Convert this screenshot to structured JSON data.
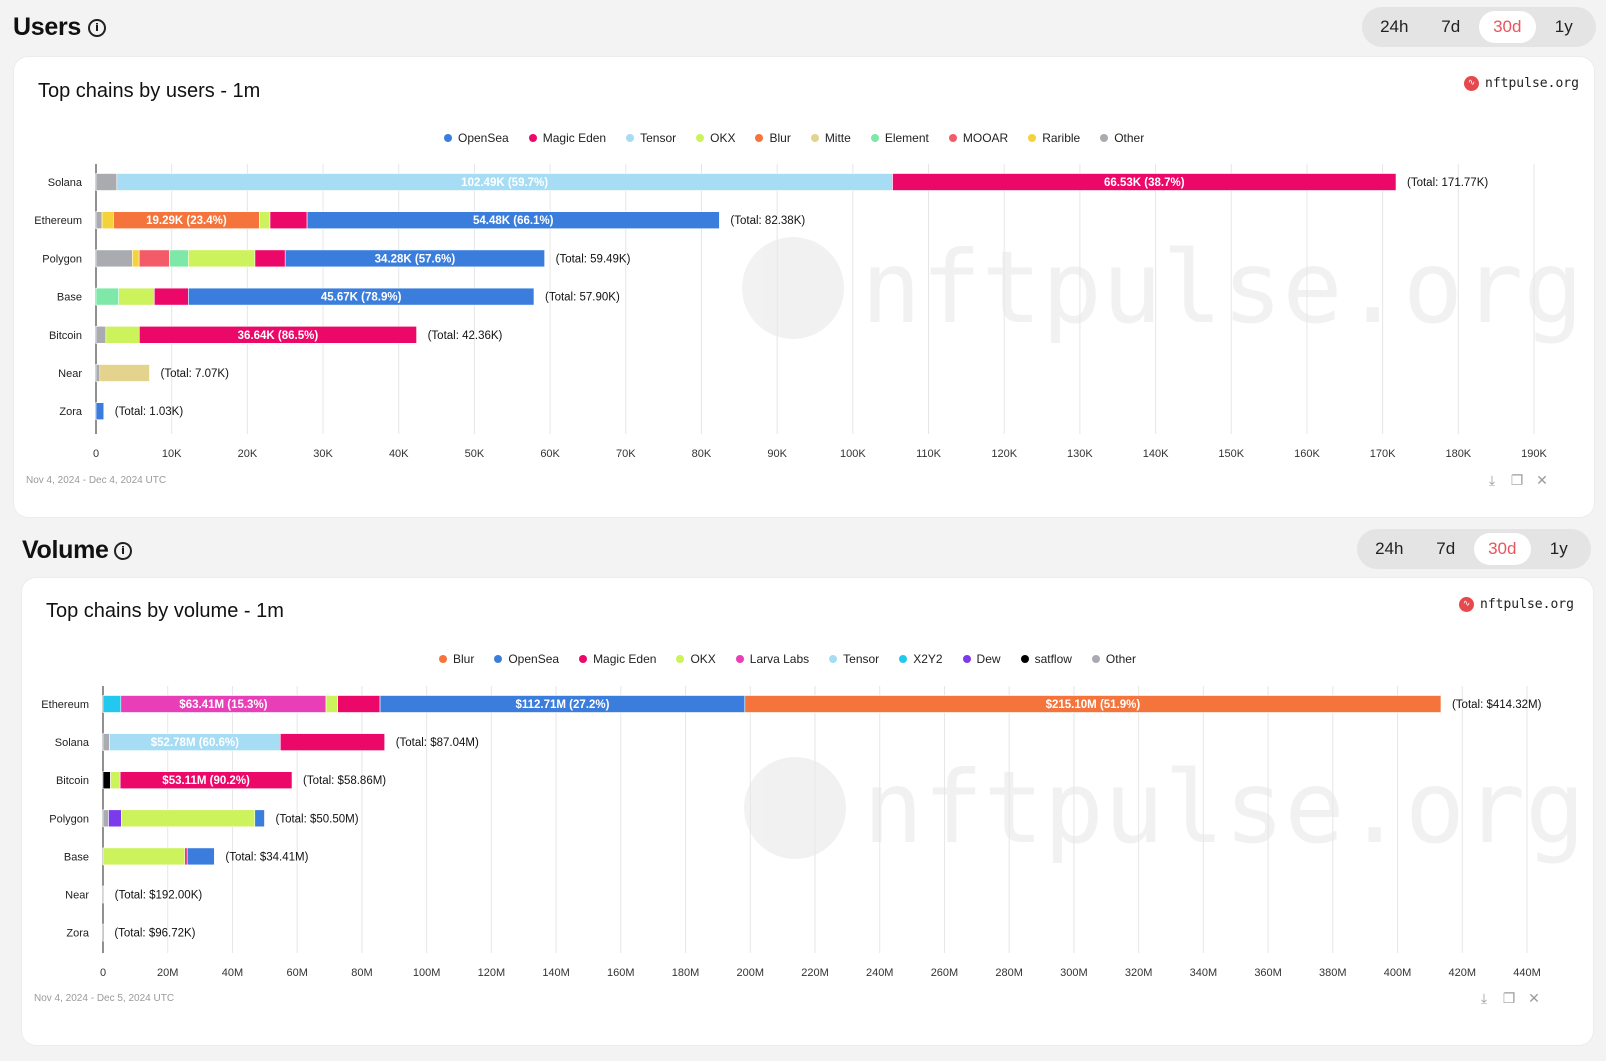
{
  "users": {
    "section_title": "Users",
    "tabs": [
      "24h",
      "7d",
      "30d",
      "1y"
    ],
    "active_tab": "30d",
    "card_title": "Top chains by users - 1m",
    "brand": "nftpulse.org",
    "watermark": "nftpulse.org",
    "date_range": "Nov 4, 2024 - Dec 4, 2024 UTC",
    "chart_data": {
      "type": "bar",
      "orientation": "horizontal",
      "stacked": true,
      "xlim": [
        0,
        190000
      ],
      "x_tick_step": 10000,
      "x_tick_labels": [
        "0",
        "10K",
        "20K",
        "30K",
        "40K",
        "50K",
        "60K",
        "70K",
        "80K",
        "90K",
        "100K",
        "110K",
        "120K",
        "130K",
        "140K",
        "150K",
        "160K",
        "170K",
        "180K",
        "190K"
      ],
      "legend_position": "top-center",
      "grid": true,
      "legend": [
        {
          "name": "OpenSea",
          "color": "#3b7ddd"
        },
        {
          "name": "Magic Eden",
          "color": "#ec0868"
        },
        {
          "name": "Tensor",
          "color": "#a6ddf5"
        },
        {
          "name": "OKX",
          "color": "#ccf25c"
        },
        {
          "name": "Blur",
          "color": "#f5743b"
        },
        {
          "name": "Mitte",
          "color": "#e3d38d"
        },
        {
          "name": "Element",
          "color": "#7ee8a8"
        },
        {
          "name": "MOOAR",
          "color": "#f45b69"
        },
        {
          "name": "Rarible",
          "color": "#f3d23a"
        },
        {
          "name": "Other",
          "color": "#a9abb0"
        }
      ],
      "categories": [
        "Solana",
        "Ethereum",
        "Polygon",
        "Base",
        "Bitcoin",
        "Near",
        "Zora"
      ],
      "rows": [
        {
          "chain": "Solana",
          "total_label": "(Total: 171.77K)",
          "segments": [
            {
              "series": "Other",
              "value": 2750
            },
            {
              "series": "Tensor",
              "value": 102490,
              "label": "102.49K (59.7%)"
            },
            {
              "series": "Magic Eden",
              "value": 66530,
              "label": "66.53K (38.7%)"
            }
          ]
        },
        {
          "chain": "Ethereum",
          "total_label": "(Total: 82.38K)",
          "segments": [
            {
              "series": "Other",
              "value": 800
            },
            {
              "series": "Rarible",
              "value": 1500
            },
            {
              "series": "Blur",
              "value": 19290,
              "label": "19.29K (23.4%)"
            },
            {
              "series": "OKX",
              "value": 1400
            },
            {
              "series": "Magic Eden",
              "value": 4900
            },
            {
              "series": "OpenSea",
              "value": 54480,
              "label": "54.48K (66.1%)"
            }
          ]
        },
        {
          "chain": "Polygon",
          "total_label": "(Total: 59.49K)",
          "segments": [
            {
              "series": "Other",
              "value": 4800
            },
            {
              "series": "Rarible",
              "value": 900
            },
            {
              "series": "MOOAR",
              "value": 4000
            },
            {
              "series": "Element",
              "value": 2500
            },
            {
              "series": "OKX",
              "value": 8800
            },
            {
              "series": "Magic Eden",
              "value": 4000
            },
            {
              "series": "OpenSea",
              "value": 34280,
              "label": "34.28K (57.6%)"
            }
          ]
        },
        {
          "chain": "Base",
          "total_label": "(Total: 57.90K)",
          "segments": [
            {
              "series": "Element",
              "value": 3000
            },
            {
              "series": "OKX",
              "value": 4700
            },
            {
              "series": "Magic Eden",
              "value": 4500
            },
            {
              "series": "OpenSea",
              "value": 45670,
              "label": "45.67K (78.9%)"
            }
          ]
        },
        {
          "chain": "Bitcoin",
          "total_label": "(Total: 42.36K)",
          "segments": [
            {
              "series": "Other",
              "value": 1300
            },
            {
              "series": "OKX",
              "value": 4420
            },
            {
              "series": "Magic Eden",
              "value": 36640,
              "label": "36.64K (86.5%)"
            }
          ]
        },
        {
          "chain": "Near",
          "total_label": "(Total: 7.07K)",
          "segments": [
            {
              "series": "Other",
              "value": 500
            },
            {
              "series": "Mitte",
              "value": 6570
            }
          ]
        },
        {
          "chain": "Zora",
          "total_label": "(Total: 1.03K)",
          "segments": [
            {
              "series": "OpenSea",
              "value": 1030
            }
          ]
        }
      ]
    }
  },
  "volume": {
    "section_title": "Volume",
    "tabs": [
      "24h",
      "7d",
      "30d",
      "1y"
    ],
    "active_tab": "30d",
    "card_title": "Top chains by volume - 1m",
    "brand": "nftpulse.org",
    "watermark": "nftpulse.org",
    "date_range": "Nov 4, 2024 - Dec 5, 2024 UTC",
    "chart_data": {
      "type": "bar",
      "orientation": "horizontal",
      "stacked": true,
      "xlim": [
        0,
        440000000
      ],
      "x_tick_step": 20000000,
      "x_tick_labels": [
        "0",
        "20M",
        "40M",
        "60M",
        "80M",
        "100M",
        "120M",
        "140M",
        "160M",
        "180M",
        "200M",
        "220M",
        "240M",
        "260M",
        "280M",
        "300M",
        "320M",
        "340M",
        "360M",
        "380M",
        "400M",
        "420M",
        "440M"
      ],
      "legend_position": "top-center",
      "grid": true,
      "legend": [
        {
          "name": "Blur",
          "color": "#f5743b"
        },
        {
          "name": "OpenSea",
          "color": "#3b7ddd"
        },
        {
          "name": "Magic Eden",
          "color": "#ec0868"
        },
        {
          "name": "OKX",
          "color": "#ccf25c"
        },
        {
          "name": "Larva Labs",
          "color": "#e83fb8"
        },
        {
          "name": "Tensor",
          "color": "#a6ddf5"
        },
        {
          "name": "X2Y2",
          "color": "#22c8ee"
        },
        {
          "name": "Dew",
          "color": "#7c3aed"
        },
        {
          "name": "satflow",
          "color": "#000000"
        },
        {
          "name": "Other",
          "color": "#a9abb0"
        }
      ],
      "categories": [
        "Ethereum",
        "Solana",
        "Bitcoin",
        "Polygon",
        "Base",
        "Near",
        "Zora"
      ],
      "rows": [
        {
          "chain": "Ethereum",
          "total_label": "(Total: $414.32M)",
          "segments": [
            {
              "series": "X2Y2",
              "value": 5500000
            },
            {
              "series": "Larva Labs",
              "value": 63410000,
              "label": "$63.41M (15.3%)"
            },
            {
              "series": "OKX",
              "value": 3600000
            },
            {
              "series": "Magic Eden",
              "value": 13100000
            },
            {
              "series": "OpenSea",
              "value": 112710000,
              "label": "$112.71M (27.2%)"
            },
            {
              "series": "Blur",
              "value": 215100000,
              "label": "$215.10M (51.9%)"
            }
          ]
        },
        {
          "chain": "Solana",
          "total_label": "(Total: $87.04M)",
          "segments": [
            {
              "series": "Other",
              "value": 2000000
            },
            {
              "series": "Tensor",
              "value": 52780000,
              "label": "$52.78M (60.6%)"
            },
            {
              "series": "Magic Eden",
              "value": 32260000
            }
          ]
        },
        {
          "chain": "Bitcoin",
          "total_label": "(Total: $58.86M)",
          "segments": [
            {
              "series": "satflow",
              "value": 2300000
            },
            {
              "series": "OKX",
              "value": 3000000
            },
            {
              "series": "Magic Eden",
              "value": 53110000,
              "label": "$53.11M (90.2%)"
            }
          ]
        },
        {
          "chain": "Polygon",
          "total_label": "(Total: $50.50M)",
          "segments": [
            {
              "series": "Other",
              "value": 1700000
            },
            {
              "series": "Dew",
              "value": 4000000
            },
            {
              "series": "OKX",
              "value": 41200000
            },
            {
              "series": "OpenSea",
              "value": 3000000
            }
          ]
        },
        {
          "chain": "Base",
          "total_label": "(Total: $34.41M)",
          "segments": [
            {
              "series": "OKX",
              "value": 25300000
            },
            {
              "series": "Magic Eden",
              "value": 700000
            },
            {
              "series": "OpenSea",
              "value": 8410000
            }
          ]
        },
        {
          "chain": "Near",
          "total_label": "(Total: $192.00K)",
          "segments": [
            {
              "series": "Other",
              "value": 192000
            }
          ]
        },
        {
          "chain": "Zora",
          "total_label": "(Total: $96.72K)",
          "segments": [
            {
              "series": "OpenSea",
              "value": 96720
            }
          ]
        }
      ]
    }
  }
}
